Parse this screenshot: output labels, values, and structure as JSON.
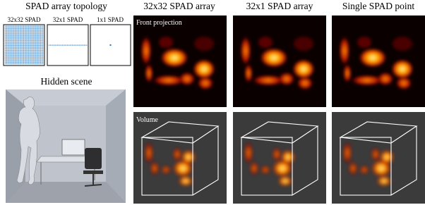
{
  "topology": {
    "title": "SPAD array topology",
    "labels": [
      "32x32 SPAD",
      "32x1 SPAD",
      "1x1 SPAD"
    ]
  },
  "hidden_scene": {
    "title": "Hidden scene"
  },
  "results": {
    "columns": [
      "32x32 SPAD array",
      "32x1 SPAD array",
      "Single SPAD point"
    ],
    "row_labels": [
      "Front projection",
      "Volume"
    ]
  }
}
